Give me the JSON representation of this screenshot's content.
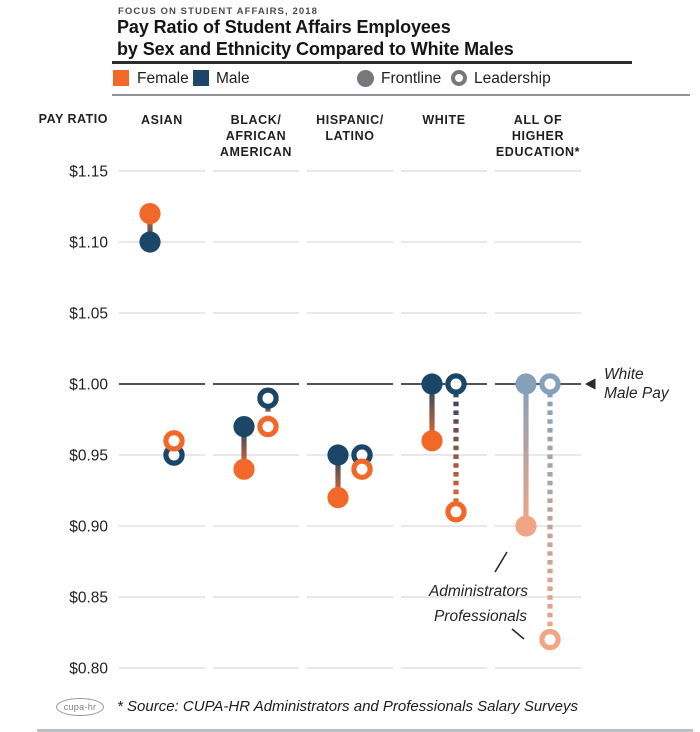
{
  "header": {
    "eyebrow": "FOCUS ON STUDENT AFFAIRS, 2018",
    "title_line1": "Pay Ratio of Student Affairs Employees",
    "title_line2": "by Sex and Ethnicity Compared to White Males"
  },
  "legend": {
    "female_label": "Female",
    "male_label": "Male",
    "frontline_label": "Frontline",
    "leadership_label": "Leadership"
  },
  "axis": {
    "label": "PAY RATIO"
  },
  "annotations": {
    "baseline_line1": "White",
    "baseline_line2": "Male Pay",
    "administrators": "Administrators",
    "professionals": "Professionals"
  },
  "footer": {
    "logo_text": "cupa-hr",
    "source": "* Source: CUPA-HR Administrators and Professionals Salary Surveys"
  },
  "colors": {
    "female": "#F26829",
    "male": "#1B4668",
    "female_muted": "#F0A584",
    "male_muted": "#85A0BB",
    "neutral_gray": "#77787B",
    "grid": "#DBDBDB",
    "baseline": "#3A3A3C"
  },
  "chart_data": {
    "type": "dumbbell-dot-plot",
    "title": "Pay Ratio of Student Affairs Employees by Sex and Ethnicity Compared to White Males",
    "ylabel": "PAY RATIO",
    "ylim": [
      0.8,
      1.15
    ],
    "baseline_value": 1.0,
    "baseline_annotation": "White Male Pay",
    "yticks": [
      {
        "label": "$1.15",
        "value": 1.15
      },
      {
        "label": "$1.10",
        "value": 1.1
      },
      {
        "label": "$1.05",
        "value": 1.05
      },
      {
        "label": "$1.00",
        "value": 1.0
      },
      {
        "label": "$0.95",
        "value": 0.95
      },
      {
        "label": "$0.90",
        "value": 0.9
      },
      {
        "label": "$0.85",
        "value": 0.85
      },
      {
        "label": "$0.80",
        "value": 0.8
      }
    ],
    "series_styles": {
      "frontline": "solid connector, filled dots",
      "leadership": "dashed connector, open dots"
    },
    "categories": [
      {
        "label_lines": [
          "ASIAN"
        ],
        "muted": false,
        "frontline": {
          "female": 1.12,
          "male": 1.1
        },
        "leadership": {
          "female": 0.96,
          "male": 0.95
        }
      },
      {
        "label_lines": [
          "BLACK/",
          "AFRICAN",
          "AMERICAN"
        ],
        "muted": false,
        "frontline": {
          "female": 0.94,
          "male": 0.97
        },
        "leadership": {
          "female": 0.97,
          "male": 0.99
        }
      },
      {
        "label_lines": [
          "HISPANIC/",
          "LATINO"
        ],
        "muted": false,
        "frontline": {
          "female": 0.92,
          "male": 0.95
        },
        "leadership": {
          "female": 0.94,
          "male": 0.95
        }
      },
      {
        "label_lines": [
          "WHITE"
        ],
        "muted": false,
        "frontline": {
          "female": 0.96,
          "male": 1.0
        },
        "leadership": {
          "female": 0.91,
          "male": 1.0
        }
      },
      {
        "label_lines": [
          "ALL OF",
          "HIGHER",
          "EDUCATION*"
        ],
        "muted": true,
        "frontline": {
          "female": 0.9,
          "male": 1.0
        },
        "leadership": {
          "female": 0.82,
          "male": 1.0
        }
      }
    ]
  }
}
